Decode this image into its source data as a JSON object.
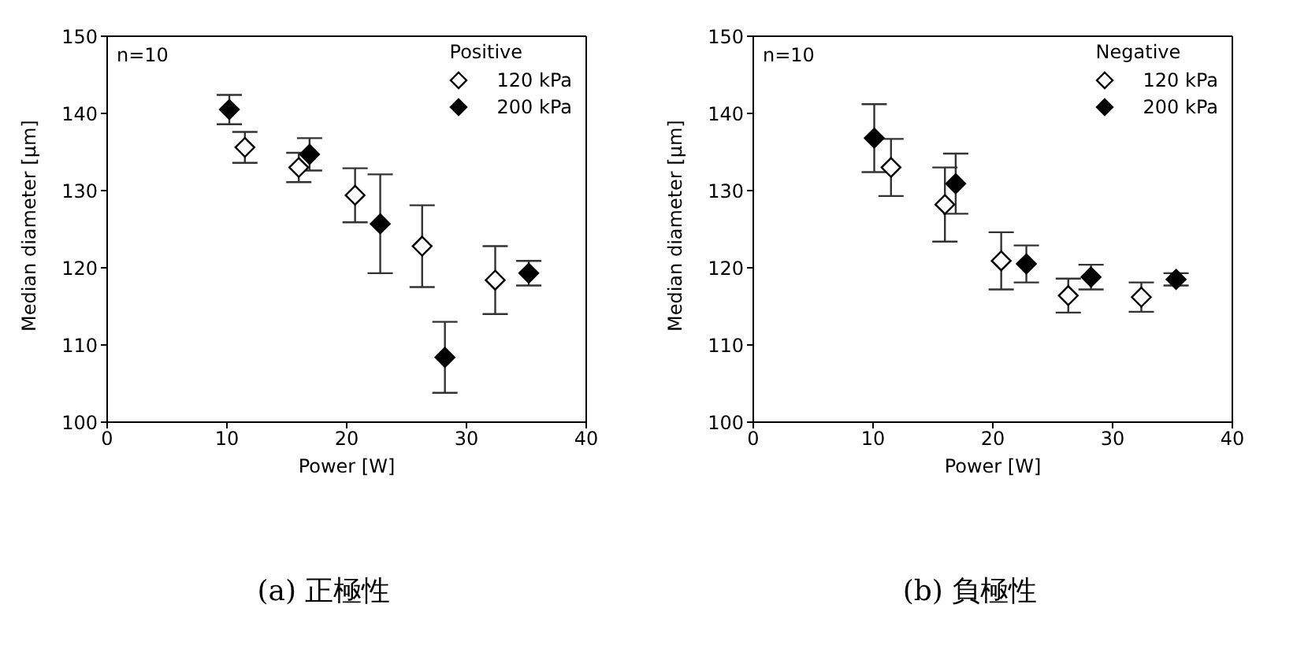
{
  "chart_data": [
    {
      "type": "scatter",
      "title": "(a) 正極性",
      "xlabel": "Power [W]",
      "ylabel": "Median diameter [µm]",
      "legend_title": "Positive",
      "annotations": [
        "n=10"
      ],
      "xlim": [
        0,
        40
      ],
      "xticks": [
        0,
        10,
        20,
        30,
        40
      ],
      "ylim": [
        100,
        150
      ],
      "yticks": [
        100,
        110,
        120,
        130,
        140,
        150
      ],
      "marker": "diamond",
      "legend": "top right",
      "grid": false,
      "series": [
        {
          "name": "120 kPa",
          "color": "#ffffff",
          "x": [
            11.5,
            16.0,
            20.7,
            26.3,
            32.4
          ],
          "values": [
            135.6,
            133.0,
            129.4,
            122.8,
            118.4
          ],
          "errors": [
            2.0,
            1.9,
            3.5,
            5.3,
            4.4
          ]
        },
        {
          "name": "200 kPa",
          "color": "#000000",
          "x": [
            10.2,
            16.9,
            22.8,
            28.2,
            35.2
          ],
          "values": [
            140.5,
            134.7,
            125.7,
            108.4,
            119.3
          ],
          "errors": [
            1.9,
            2.1,
            6.4,
            4.6,
            1.6
          ]
        }
      ]
    },
    {
      "type": "scatter",
      "title": "(b) 負極性",
      "xlabel": "Power [W]",
      "ylabel": "Median diameter [µm]",
      "legend_title": "Negative",
      "annotations": [
        "n=10"
      ],
      "xlim": [
        0,
        40
      ],
      "xticks": [
        0,
        10,
        20,
        30,
        40
      ],
      "ylim": [
        100,
        150
      ],
      "yticks": [
        100,
        110,
        120,
        130,
        140,
        150
      ],
      "marker": "diamond",
      "legend": "top right",
      "grid": false,
      "series": [
        {
          "name": "120 kPa",
          "color": "#ffffff",
          "x": [
            11.5,
            16.0,
            20.7,
            26.3,
            32.4
          ],
          "values": [
            133.0,
            128.2,
            120.9,
            116.4,
            116.2
          ],
          "errors": [
            3.7,
            4.8,
            3.7,
            2.2,
            1.9
          ]
        },
        {
          "name": "200 kPa",
          "color": "#000000",
          "x": [
            10.1,
            16.9,
            22.8,
            28.2,
            35.3
          ],
          "values": [
            136.8,
            130.9,
            120.5,
            118.8,
            118.5
          ],
          "errors": [
            4.4,
            3.9,
            2.4,
            1.6,
            0.8
          ]
        }
      ]
    }
  ]
}
